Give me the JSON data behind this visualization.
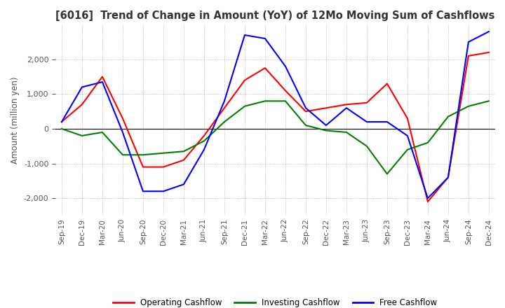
{
  "title": "[6016]  Trend of Change in Amount (YoY) of 12Mo Moving Sum of Cashflows",
  "ylabel": "Amount (million yen)",
  "x_labels": [
    "Sep-19",
    "Dec-19",
    "Mar-20",
    "Jun-20",
    "Sep-20",
    "Dec-20",
    "Mar-21",
    "Jun-21",
    "Sep-21",
    "Dec-21",
    "Mar-22",
    "Jun-22",
    "Sep-22",
    "Dec-22",
    "Mar-23",
    "Jun-23",
    "Sep-23",
    "Dec-23",
    "Mar-24",
    "Jun-24",
    "Sep-24",
    "Dec-24"
  ],
  "operating": [
    200,
    700,
    1500,
    300,
    -1100,
    -1100,
    -900,
    -200,
    600,
    1400,
    1750,
    1100,
    500,
    600,
    700,
    750,
    1300,
    300,
    -2100,
    -1400,
    2100,
    2200
  ],
  "investing": [
    0,
    -200,
    -100,
    -750,
    -750,
    -700,
    -650,
    -350,
    200,
    650,
    800,
    800,
    100,
    -50,
    -100,
    -500,
    -1300,
    -600,
    -400,
    350,
    650,
    800
  ],
  "free": [
    200,
    1200,
    1350,
    -100,
    -1800,
    -1800,
    -1600,
    -600,
    800,
    2700,
    2600,
    1800,
    600,
    100,
    600,
    200,
    200,
    -200,
    -2000,
    -1400,
    2500,
    2800
  ],
  "ylim": [
    -2500,
    3000
  ],
  "yticks": [
    -2000,
    -1000,
    0,
    1000,
    2000
  ],
  "colors": {
    "operating": "#FF0000",
    "investing": "#008000",
    "free": "#0000FF"
  },
  "legend_labels": [
    "Operating Cashflow",
    "Investing Cashflow",
    "Free Cashflow"
  ],
  "grid_color": "#aaaaaa",
  "background_color": "#ffffff",
  "title_color": "#333333",
  "tick_label_color": "#555555"
}
